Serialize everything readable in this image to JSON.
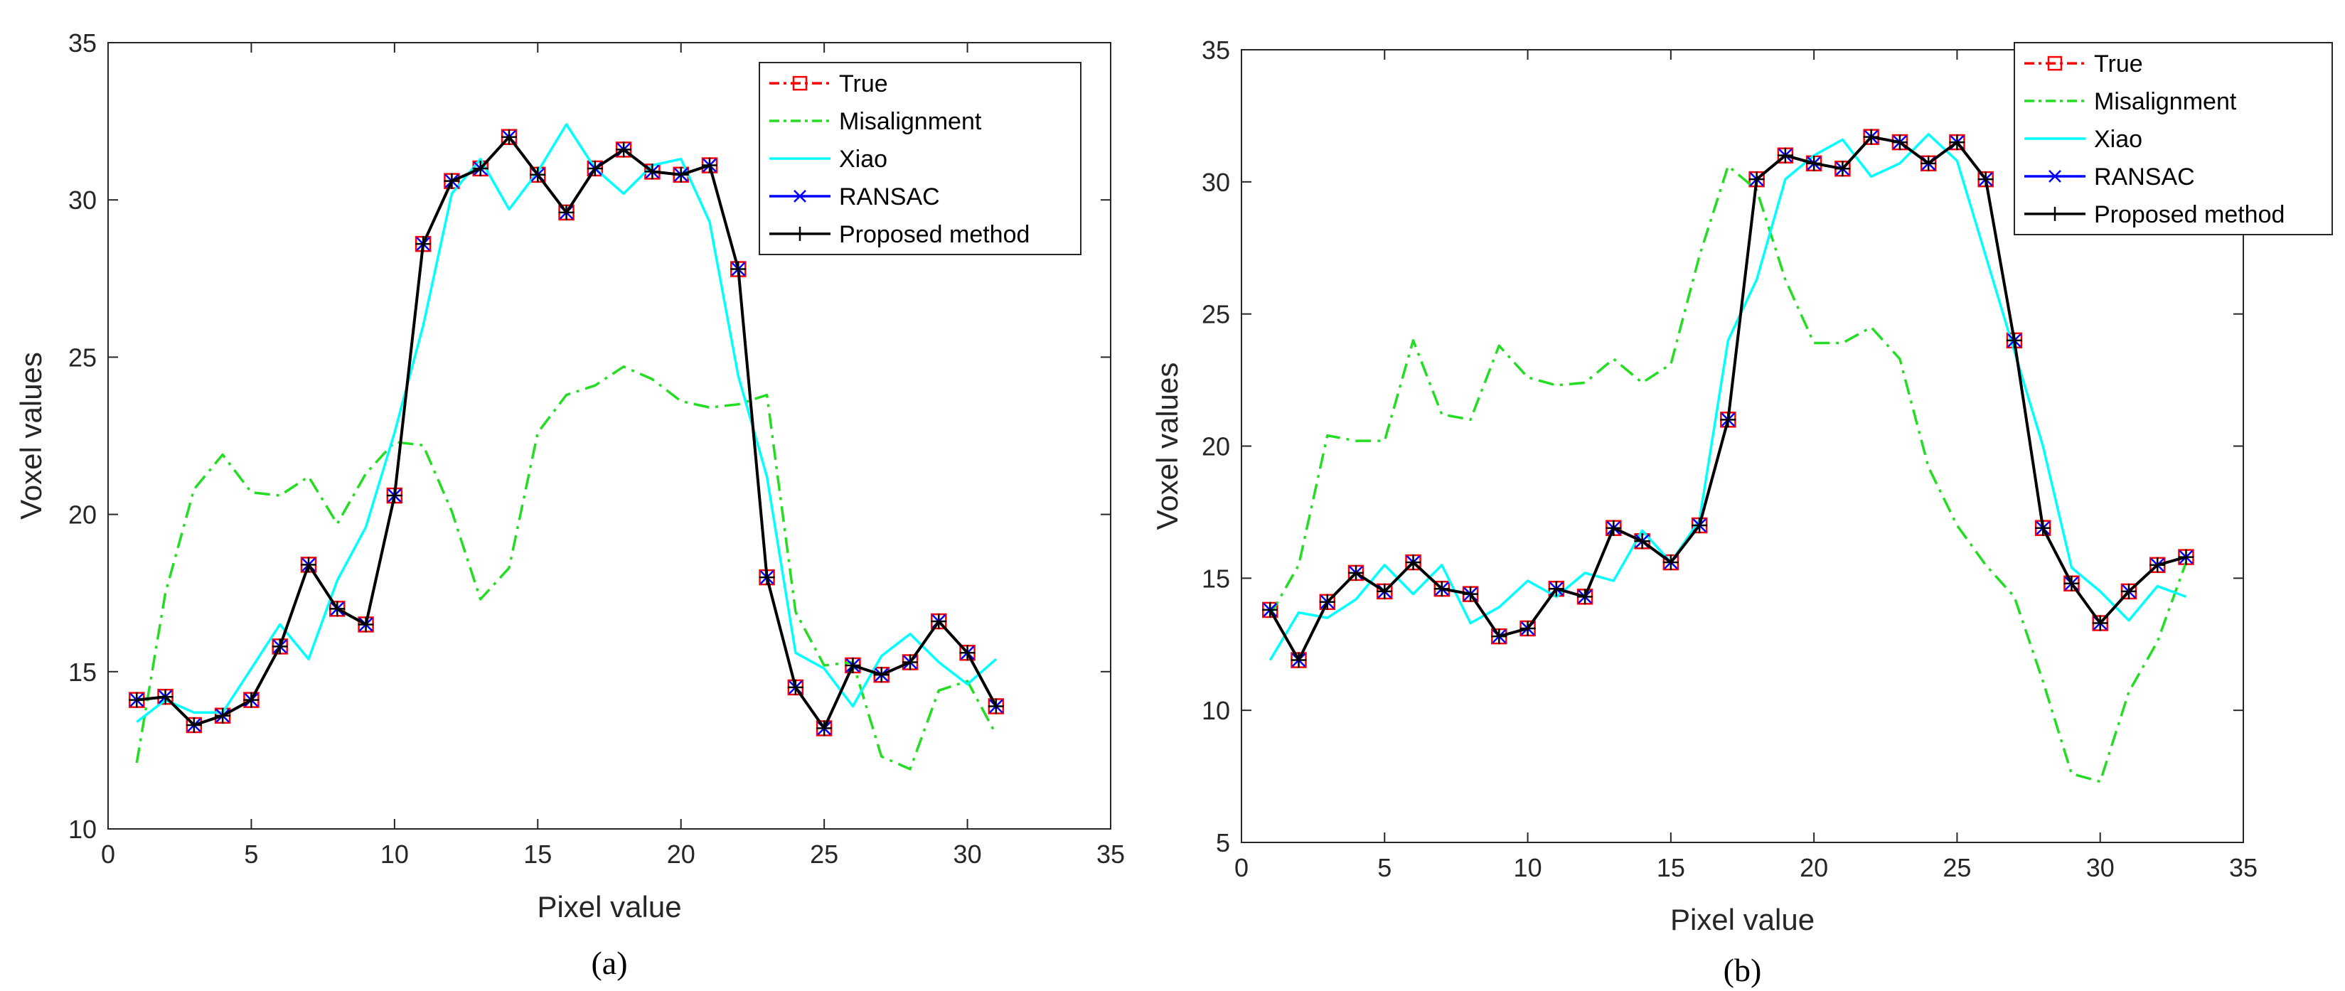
{
  "chart_data": [
    {
      "type": "line",
      "caption": "(a)",
      "xlabel": "Pixel value",
      "ylabel": "Voxel values",
      "xlim": [
        0,
        35
      ],
      "ylim": [
        10,
        35
      ],
      "xticks": [
        0,
        5,
        10,
        15,
        20,
        25,
        30,
        35
      ],
      "yticks": [
        10,
        15,
        20,
        25,
        30,
        35
      ],
      "grid": false,
      "legend_position": "top-right",
      "x": [
        1,
        2,
        3,
        4,
        5,
        6,
        7,
        8,
        9,
        10,
        11,
        12,
        13,
        14,
        15,
        16,
        17,
        18,
        19,
        20,
        21,
        22,
        23,
        24,
        25,
        26,
        27,
        28,
        29,
        30,
        31
      ],
      "series": [
        {
          "name": "True",
          "color": "#ff0000",
          "style": "dashdot",
          "marker": "square",
          "values": [
            14.1,
            14.2,
            13.3,
            13.6,
            14.1,
            15.8,
            18.4,
            17.0,
            16.5,
            20.6,
            28.6,
            30.6,
            31.0,
            32.0,
            30.8,
            29.6,
            31.0,
            31.6,
            30.9,
            30.8,
            31.1,
            27.8,
            18.0,
            14.5,
            13.2,
            15.2,
            14.9,
            15.3,
            16.6,
            15.6,
            13.9
          ]
        },
        {
          "name": "Misalignment",
          "color": "#22dd22",
          "style": "dashdot",
          "marker": "none",
          "values": [
            12.1,
            17.5,
            20.8,
            21.9,
            20.7,
            20.6,
            21.2,
            19.7,
            21.3,
            22.3,
            22.2,
            20.1,
            17.3,
            18.3,
            22.6,
            23.8,
            24.1,
            24.7,
            24.3,
            23.6,
            23.4,
            23.5,
            23.8,
            16.9,
            15.2,
            15.3,
            12.3,
            11.9,
            14.4,
            14.7,
            13.0
          ]
        },
        {
          "name": "Xiao",
          "color": "#00ffff",
          "style": "solid",
          "marker": "none",
          "values": [
            13.4,
            14.1,
            13.7,
            13.7,
            15.1,
            16.5,
            15.4,
            17.9,
            19.6,
            22.6,
            26.0,
            30.2,
            31.3,
            29.7,
            30.9,
            32.4,
            31.0,
            30.2,
            31.1,
            31.3,
            29.3,
            24.4,
            21.2,
            15.6,
            15.1,
            13.9,
            15.5,
            16.2,
            15.3,
            14.6,
            15.4
          ]
        },
        {
          "name": "RANSAC",
          "color": "#0000ff",
          "style": "solid",
          "marker": "x",
          "values": [
            14.1,
            14.2,
            13.3,
            13.6,
            14.1,
            15.8,
            18.4,
            17.0,
            16.5,
            20.6,
            28.6,
            30.6,
            31.0,
            32.0,
            30.8,
            29.6,
            31.0,
            31.6,
            30.9,
            30.8,
            31.1,
            27.8,
            18.0,
            14.5,
            13.2,
            15.2,
            14.9,
            15.3,
            16.6,
            15.6,
            13.9
          ]
        },
        {
          "name": "Proposed method",
          "color": "#000000",
          "style": "solid",
          "marker": "plus",
          "values": [
            14.1,
            14.2,
            13.3,
            13.6,
            14.1,
            15.8,
            18.4,
            17.0,
            16.5,
            20.6,
            28.6,
            30.6,
            31.0,
            32.0,
            30.8,
            29.6,
            31.0,
            31.6,
            30.9,
            30.8,
            31.1,
            27.8,
            18.0,
            14.5,
            13.2,
            15.2,
            14.9,
            15.3,
            16.6,
            15.6,
            13.9
          ]
        }
      ]
    },
    {
      "type": "line",
      "caption": "(b)",
      "xlabel": "Pixel value",
      "ylabel": "Voxel values",
      "xlim": [
        0,
        35
      ],
      "ylim": [
        5,
        35
      ],
      "xticks": [
        0,
        5,
        10,
        15,
        20,
        25,
        30,
        35
      ],
      "yticks": [
        5,
        10,
        15,
        20,
        25,
        30,
        35
      ],
      "grid": false,
      "legend_position": "top-right",
      "x": [
        1,
        2,
        3,
        4,
        5,
        6,
        7,
        8,
        9,
        10,
        11,
        12,
        13,
        14,
        15,
        16,
        17,
        18,
        19,
        20,
        21,
        22,
        23,
        24,
        25,
        26,
        27,
        28,
        29,
        30,
        31,
        32,
        33
      ],
      "series": [
        {
          "name": "True",
          "color": "#ff0000",
          "style": "dashdot",
          "marker": "square",
          "values": [
            13.8,
            11.9,
            14.1,
            15.2,
            14.5,
            15.6,
            14.6,
            14.4,
            12.8,
            13.1,
            14.6,
            14.3,
            16.9,
            16.4,
            15.6,
            17.0,
            21.0,
            30.1,
            31.0,
            30.7,
            30.5,
            31.7,
            31.5,
            30.7,
            31.5,
            30.1,
            24.0,
            16.9,
            14.8,
            13.3,
            14.5,
            15.5,
            15.8
          ]
        },
        {
          "name": "Misalignment",
          "color": "#22dd22",
          "style": "dashdot",
          "marker": "none",
          "values": [
            13.6,
            15.5,
            20.4,
            20.2,
            20.2,
            24.0,
            21.2,
            21.0,
            23.8,
            22.6,
            22.3,
            22.4,
            23.3,
            22.4,
            23.1,
            27.2,
            30.6,
            29.7,
            26.3,
            23.9,
            23.9,
            24.5,
            23.3,
            19.2,
            17.0,
            15.5,
            14.3,
            11.1,
            7.6,
            7.3,
            10.7,
            12.6,
            15.6
          ]
        },
        {
          "name": "Xiao",
          "color": "#00ffff",
          "style": "solid",
          "marker": "none",
          "values": [
            11.9,
            13.7,
            13.5,
            14.2,
            15.5,
            14.4,
            15.5,
            13.3,
            13.9,
            14.9,
            14.3,
            15.2,
            14.9,
            16.8,
            15.6,
            17.2,
            24.0,
            26.3,
            30.1,
            31.0,
            31.6,
            30.2,
            30.7,
            31.8,
            30.8,
            27.2,
            23.6,
            20.0,
            15.4,
            14.5,
            13.4,
            14.7,
            14.3
          ]
        },
        {
          "name": "RANSAC",
          "color": "#0000ff",
          "style": "solid",
          "marker": "x",
          "values": [
            13.8,
            11.9,
            14.1,
            15.2,
            14.5,
            15.6,
            14.6,
            14.4,
            12.8,
            13.1,
            14.6,
            14.3,
            16.9,
            16.4,
            15.6,
            17.0,
            21.0,
            30.1,
            31.0,
            30.7,
            30.5,
            31.7,
            31.5,
            30.7,
            31.5,
            30.1,
            24.0,
            16.9,
            14.8,
            13.3,
            14.5,
            15.5,
            15.8
          ]
        },
        {
          "name": "Proposed method",
          "color": "#000000",
          "style": "solid",
          "marker": "plus",
          "values": [
            13.8,
            11.9,
            14.1,
            15.2,
            14.5,
            15.6,
            14.6,
            14.4,
            12.8,
            13.1,
            14.6,
            14.3,
            16.9,
            16.4,
            15.6,
            17.0,
            21.0,
            30.1,
            31.0,
            30.7,
            30.5,
            31.7,
            31.5,
            30.7,
            31.5,
            30.1,
            24.0,
            16.9,
            14.8,
            13.3,
            14.5,
            15.5,
            15.8
          ]
        }
      ]
    }
  ]
}
